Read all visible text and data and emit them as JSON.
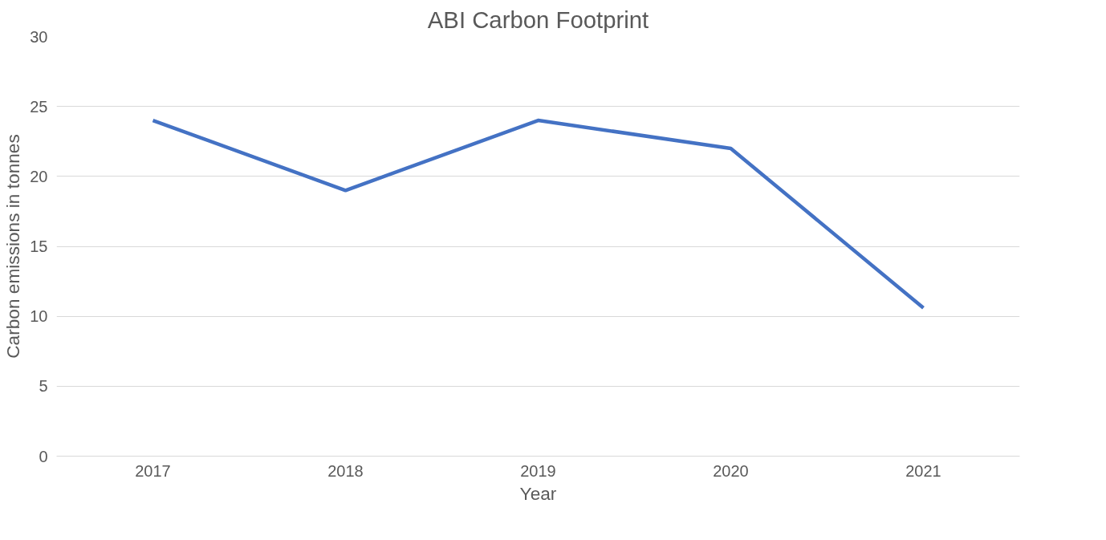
{
  "chart_data": {
    "type": "line",
    "title": "ABI Carbon Footprint",
    "xlabel": "Year",
    "ylabel": "Carbon emissions in tonnes",
    "categories": [
      "2017",
      "2018",
      "2019",
      "2020",
      "2021"
    ],
    "series": [
      {
        "color": "#4472c4",
        "values": [
          24,
          19,
          24,
          22,
          10.6
        ]
      }
    ],
    "ylim": [
      0,
      30
    ],
    "yticks": [
      0,
      5,
      10,
      15,
      20,
      25,
      30
    ],
    "grid": "y",
    "line_style": "solid"
  }
}
